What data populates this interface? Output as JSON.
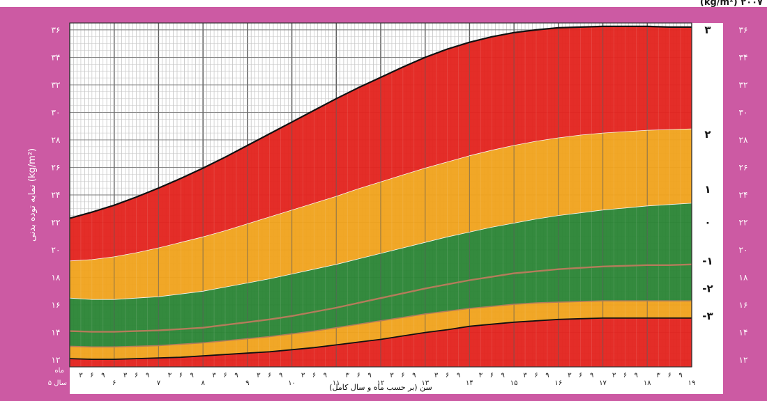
{
  "header": {
    "cropped_text": "(kg/m²) ۲۰۰۷"
  },
  "chart_data": {
    "type": "area",
    "title": "",
    "ylabel": "نمایه توده بدنی (kg/m²)",
    "xlabel": "سن (بر حسب ماه و سال کامل)",
    "unit_label": "ماه",
    "ylim": [
      11.5,
      36.5
    ],
    "xlim": [
      5,
      19
    ],
    "y_ticks": [
      {
        "v": 12,
        "label": "۱۲"
      },
      {
        "v": 14,
        "label": "۱۴"
      },
      {
        "v": 16,
        "label": "۱۶"
      },
      {
        "v": 18,
        "label": "۱۸"
      },
      {
        "v": 20,
        "label": "۲۰"
      },
      {
        "v": 22,
        "label": "۲۲"
      },
      {
        "v": 24,
        "label": "۲۴"
      },
      {
        "v": 26,
        "label": "۲۶"
      },
      {
        "v": 28,
        "label": "۲۸"
      },
      {
        "v": 30,
        "label": "۳۰"
      },
      {
        "v": 32,
        "label": "۳۲"
      },
      {
        "v": 34,
        "label": "۳۴"
      },
      {
        "v": 36,
        "label": "۳۶"
      }
    ],
    "year_labels": [
      {
        "v": 5,
        "label": "۵ سال"
      },
      {
        "v": 6,
        "label": "۶"
      },
      {
        "v": 7,
        "label": "۷"
      },
      {
        "v": 8,
        "label": "۸"
      },
      {
        "v": 9,
        "label": "۹"
      },
      {
        "v": 10,
        "label": "۱۰"
      },
      {
        "v": 11,
        "label": "۱۱"
      },
      {
        "v": 12,
        "label": "۱۲"
      },
      {
        "v": 13,
        "label": "۱۳"
      },
      {
        "v": 14,
        "label": "۱۴"
      },
      {
        "v": 15,
        "label": "۱۵"
      },
      {
        "v": 16,
        "label": "۱۶"
      },
      {
        "v": 17,
        "label": "۱۷"
      },
      {
        "v": 18,
        "label": "۱۸"
      },
      {
        "v": 19,
        "label": "۱۹"
      }
    ],
    "month_labels": [
      "۳",
      "۶",
      "۹"
    ],
    "x": [
      5,
      5.5,
      6,
      6.5,
      7,
      7.5,
      8,
      8.5,
      9,
      9.5,
      10,
      10.5,
      11,
      11.5,
      12,
      12.5,
      13,
      13.5,
      14,
      14.5,
      15,
      15.5,
      16,
      16.5,
      17,
      17.5,
      18,
      18.5,
      19
    ],
    "series": [
      {
        "name": "-۳",
        "values": [
          12.1,
          12.05,
          12.05,
          12.1,
          12.15,
          12.2,
          12.3,
          12.4,
          12.5,
          12.6,
          12.75,
          12.9,
          13.1,
          13.3,
          13.5,
          13.75,
          14.0,
          14.2,
          14.45,
          14.6,
          14.75,
          14.85,
          14.95,
          15.0,
          15.05,
          15.05,
          15.05,
          15.05,
          15.05
        ]
      },
      {
        "name": "-۲",
        "values": [
          13.0,
          12.95,
          12.95,
          13.0,
          13.05,
          13.15,
          13.25,
          13.4,
          13.55,
          13.7,
          13.9,
          14.1,
          14.35,
          14.6,
          14.85,
          15.1,
          15.35,
          15.55,
          15.75,
          15.9,
          16.05,
          16.15,
          16.2,
          16.25,
          16.3,
          16.3,
          16.3,
          16.3,
          16.3
        ]
      },
      {
        "name": "-۱",
        "values": [
          14.1,
          14.05,
          14.05,
          14.1,
          14.15,
          14.25,
          14.35,
          14.55,
          14.75,
          14.95,
          15.2,
          15.5,
          15.8,
          16.15,
          16.5,
          16.85,
          17.2,
          17.5,
          17.8,
          18.05,
          18.3,
          18.45,
          18.6,
          18.7,
          18.8,
          18.85,
          18.9,
          18.9,
          18.95
        ]
      },
      {
        "name": "۰",
        "values": [
          16.5,
          16.4,
          16.4,
          16.5,
          16.6,
          16.8,
          17.0,
          17.3,
          17.6,
          17.9,
          18.25,
          18.6,
          18.95,
          19.35,
          19.75,
          20.15,
          20.55,
          20.95,
          21.3,
          21.65,
          21.95,
          22.25,
          22.5,
          22.7,
          22.9,
          23.05,
          23.2,
          23.3,
          23.4
        ]
      },
      {
        "name": "۱",
        "values": [
          19.2,
          19.3,
          19.5,
          19.8,
          20.15,
          20.55,
          20.95,
          21.4,
          21.9,
          22.4,
          22.9,
          23.4,
          23.9,
          24.45,
          24.95,
          25.45,
          25.95,
          26.4,
          26.85,
          27.25,
          27.6,
          27.9,
          28.15,
          28.35,
          28.5,
          28.6,
          28.7,
          28.75,
          28.8
        ]
      },
      {
        "name": "۲",
        "values": [
          22.3,
          22.75,
          23.25,
          23.85,
          24.5,
          25.2,
          25.95,
          26.75,
          27.6,
          28.45,
          29.3,
          30.15,
          31.0,
          31.8,
          32.55,
          33.3,
          34.0,
          34.6,
          35.1,
          35.5,
          35.8,
          36.0,
          36.15,
          36.2,
          36.25,
          36.25,
          36.25,
          36.2,
          36.2
        ]
      }
    ],
    "band_colors": {
      "outer": "#e3241f",
      "middle": "#f0a31e",
      "inner": "#2c8536"
    },
    "median_line_color": "#b47c5b",
    "boundary_line_color": "#111111",
    "grid": true,
    "z_labels": [
      "۳",
      "۲",
      "۱",
      "۰",
      "-۱",
      "-۲",
      "-۳"
    ]
  }
}
